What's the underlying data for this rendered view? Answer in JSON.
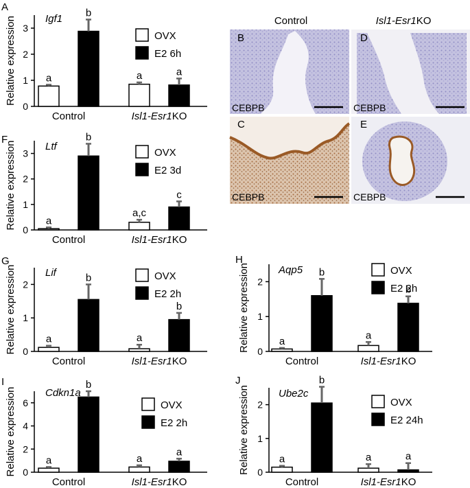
{
  "header": {
    "control": "Control",
    "ko_prefix": "Isl1-Esr1",
    "ko_suffix": "KO"
  },
  "micrographs": [
    {
      "letter": "B",
      "stain": "CEBPB"
    },
    {
      "letter": "D",
      "stain": "CEBPB"
    },
    {
      "letter": "C",
      "stain": "CEBPB"
    },
    {
      "letter": "E",
      "stain": "CEBPB"
    }
  ],
  "chart_data": [
    {
      "type": "bar",
      "letter": "A",
      "gene": "Igf1",
      "ylabel": "Relative expression",
      "ylim": [
        0,
        3.5
      ],
      "yticks": [
        0,
        1,
        2,
        3
      ],
      "categories": [
        "Control",
        "Isl1-Esr1KO"
      ],
      "series": [
        {
          "name": "OVX",
          "values": [
            0.78,
            0.85
          ],
          "errors": [
            0.05,
            0.07
          ],
          "sig": [
            "a",
            "a"
          ],
          "color": "#ffffff"
        },
        {
          "name": "E2 6h",
          "values": [
            2.88,
            0.82
          ],
          "errors": [
            0.45,
            0.25
          ],
          "sig": [
            "b",
            "a"
          ],
          "color": "#000000"
        }
      ]
    },
    {
      "type": "bar",
      "letter": "F",
      "gene": "Ltf",
      "ylabel": "Relative expression",
      "ylim": [
        0,
        3.5
      ],
      "yticks": [
        0,
        1,
        2,
        3
      ],
      "categories": [
        "Control",
        "Isl1-Esr1KO"
      ],
      "series": [
        {
          "name": "OVX",
          "values": [
            0.05,
            0.3
          ],
          "errors": [
            0.05,
            0.1
          ],
          "sig": [
            "a",
            "a,c"
          ],
          "color": "#ffffff"
        },
        {
          "name": "E2 3d",
          "values": [
            2.9,
            0.9
          ],
          "errors": [
            0.48,
            0.22
          ],
          "sig": [
            "b",
            "c"
          ],
          "color": "#000000"
        }
      ]
    },
    {
      "type": "bar",
      "letter": "G",
      "gene": "Lif",
      "ylabel": "Relative expression",
      "ylim": [
        0,
        2.5
      ],
      "yticks": [
        0,
        1,
        2
      ],
      "categories": [
        "Control",
        "Isl1-Esr1KO"
      ],
      "series": [
        {
          "name": "OVX",
          "values": [
            0.12,
            0.08
          ],
          "errors": [
            0.05,
            0.12
          ],
          "sig": [
            "a",
            "a"
          ],
          "color": "#ffffff"
        },
        {
          "name": "E2 2h",
          "values": [
            1.55,
            0.95
          ],
          "errors": [
            0.45,
            0.2
          ],
          "sig": [
            "b",
            "b"
          ],
          "color": "#000000"
        }
      ]
    },
    {
      "type": "bar",
      "letter": "H",
      "gene": "Aqp5",
      "ylabel": "Relative expression",
      "ylim": [
        0,
        2.5
      ],
      "yticks": [
        0,
        1,
        2
      ],
      "categories": [
        "Control",
        "Isl1-Esr1KO"
      ],
      "series": [
        {
          "name": "OVX",
          "values": [
            0.07,
            0.17
          ],
          "errors": [
            0.03,
            0.1
          ],
          "sig": [
            "a",
            "a"
          ],
          "color": "#ffffff"
        },
        {
          "name": "E2 2h",
          "values": [
            1.6,
            1.38
          ],
          "errors": [
            0.48,
            0.2
          ],
          "sig": [
            "b",
            "b"
          ],
          "color": "#000000"
        }
      ]
    },
    {
      "type": "bar",
      "letter": "I",
      "gene": "Cdkn1a",
      "ylabel": "Relative expression",
      "ylim": [
        0,
        7
      ],
      "yticks": [
        0,
        2,
        4,
        6
      ],
      "categories": [
        "Control",
        "Isl1-Esr1KO"
      ],
      "series": [
        {
          "name": "OVX",
          "values": [
            0.35,
            0.45
          ],
          "errors": [
            0.1,
            0.15
          ],
          "sig": [
            "a",
            "a"
          ],
          "color": "#ffffff"
        },
        {
          "name": "E2 2h",
          "values": [
            6.5,
            0.95
          ],
          "errors": [
            0.5,
            0.22
          ],
          "sig": [
            "b",
            "a"
          ],
          "color": "#000000"
        }
      ]
    },
    {
      "type": "bar",
      "letter": "J",
      "gene": "Ube2c",
      "ylabel": "Relative expression",
      "ylim": [
        0,
        2.5
      ],
      "yticks": [
        0,
        1,
        2
      ],
      "categories": [
        "Control",
        "Isl1-Esr1KO"
      ],
      "series": [
        {
          "name": "OVX",
          "values": [
            0.15,
            0.12
          ],
          "errors": [
            0.04,
            0.12
          ],
          "sig": [
            "a",
            "a"
          ],
          "color": "#ffffff"
        },
        {
          "name": "E2 24h",
          "values": [
            2.05,
            0.07
          ],
          "errors": [
            0.48,
            0.2
          ],
          "sig": [
            "b",
            "a"
          ],
          "color": "#000000"
        }
      ]
    }
  ]
}
